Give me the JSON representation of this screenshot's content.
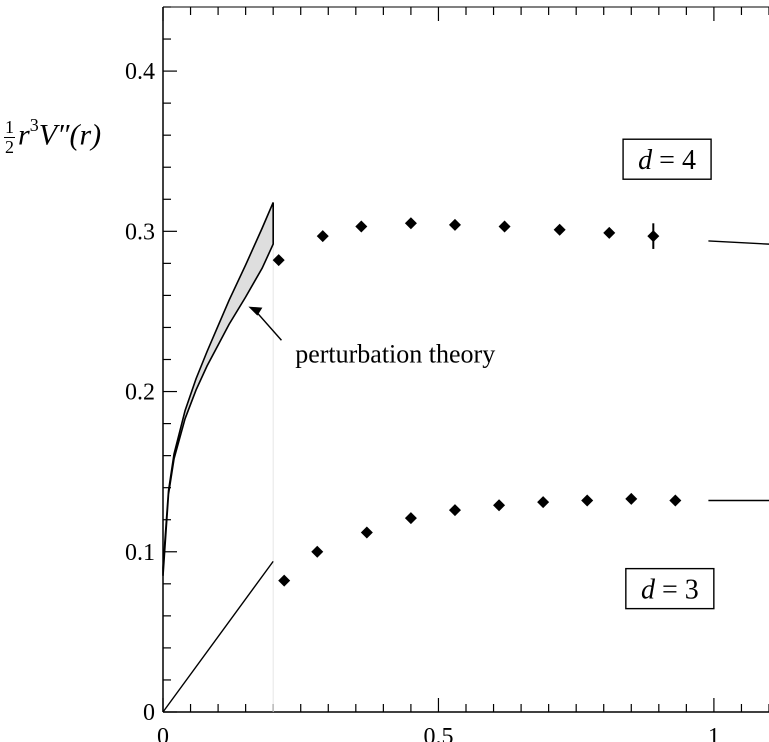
{
  "chart_data": {
    "type": "scatter",
    "title": "",
    "xlabel": "",
    "ylabel": "½ r³V″(r)",
    "xlim": [
      0,
      1.1
    ],
    "ylim": [
      0,
      0.44
    ],
    "x_ticks": [
      0,
      0.5,
      1
    ],
    "x_tick_labels": [
      "0",
      "0.5",
      "1"
    ],
    "y_ticks": [
      0,
      0.1,
      0.2,
      0.3,
      0.4
    ],
    "y_tick_labels": [
      "0",
      "0.1",
      "0.2",
      "0.3",
      "0.4"
    ],
    "grid": false,
    "series": [
      {
        "name": "d = 4",
        "x": [
          0.21,
          0.29,
          0.36,
          0.45,
          0.53,
          0.62,
          0.72,
          0.81,
          0.89
        ],
        "y": [
          0.282,
          0.297,
          0.303,
          0.305,
          0.304,
          0.303,
          0.301,
          0.299,
          0.297
        ],
        "error": [
          0,
          0,
          0,
          0,
          0,
          0,
          0,
          0,
          0.008
        ],
        "marker": "diamond"
      },
      {
        "name": "d = 3",
        "x": [
          0.22,
          0.28,
          0.37,
          0.45,
          0.53,
          0.61,
          0.69,
          0.77,
          0.85,
          0.93
        ],
        "y": [
          0.082,
          0.1,
          0.112,
          0.121,
          0.126,
          0.129,
          0.131,
          0.132,
          0.133,
          0.132
        ],
        "marker": "diamond"
      }
    ],
    "bands": [
      {
        "x": [
          0,
          0.01,
          0.02,
          0.04,
          0.06,
          0.08,
          0.1,
          0.12,
          0.15,
          0.18,
          0.2
        ],
        "lower": [
          0.085,
          0.136,
          0.158,
          0.183,
          0.201,
          0.216,
          0.229,
          0.242,
          0.259,
          0.277,
          0.292
        ],
        "upper": [
          0.09,
          0.138,
          0.161,
          0.188,
          0.208,
          0.225,
          0.241,
          0.257,
          0.279,
          0.302,
          0.318
        ]
      }
    ],
    "lines": [
      {
        "x": [
          0,
          0.2
        ],
        "y": [
          0,
          0.094
        ]
      },
      {
        "x": [
          0.99,
          1.1
        ],
        "y": [
          0.294,
          0.292
        ]
      },
      {
        "x": [
          0.99,
          1.1
        ],
        "y": [
          0.132,
          0.132
        ]
      }
    ],
    "annotations": [
      {
        "text": "perturbation theory",
        "x": 0.24,
        "y": 0.218
      }
    ],
    "boxed_labels": [
      {
        "text": "d = 4",
        "x": 0.915,
        "y": 0.345
      },
      {
        "text": "d = 3",
        "x": 0.92,
        "y": 0.077
      }
    ],
    "colors": {
      "markers": "#000000",
      "band_fill": "#dedede",
      "lines": "#000000"
    }
  }
}
